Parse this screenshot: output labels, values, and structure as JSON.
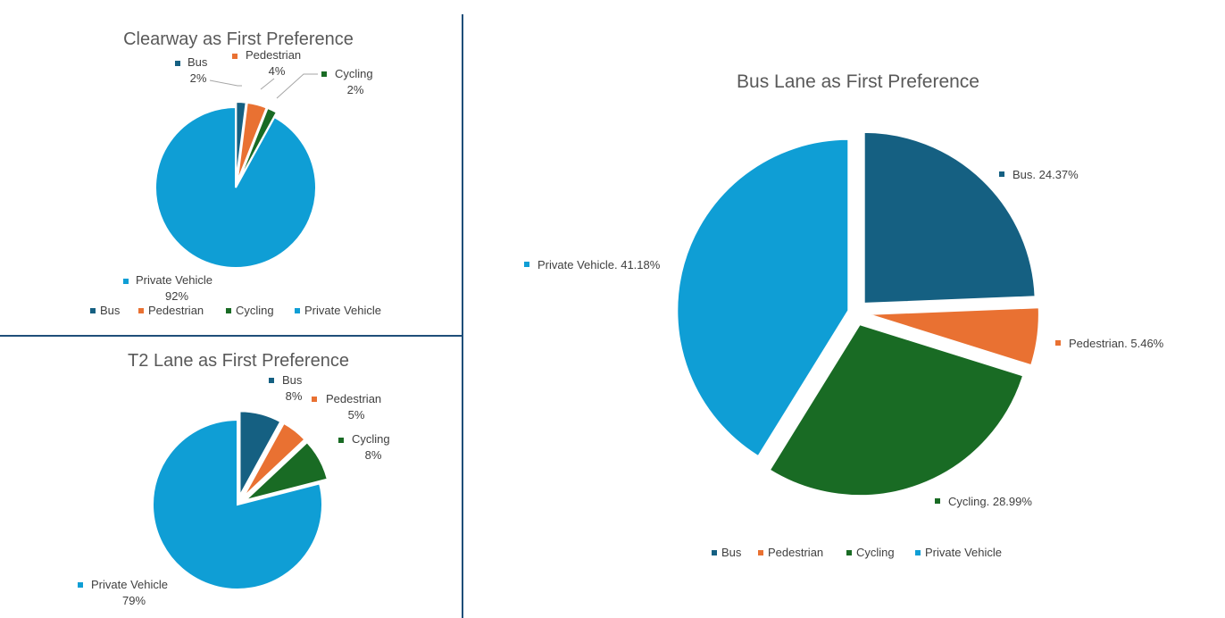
{
  "chart_data": [
    {
      "type": "pie",
      "title": "Clearway as First Preference",
      "categories": [
        "Bus",
        "Pedestrian",
        "Cycling",
        "Private Vehicle"
      ],
      "values": [
        2,
        4,
        2,
        92
      ],
      "value_labels": [
        "2%",
        "4%",
        "2%",
        "92%"
      ],
      "colors": [
        "#156082",
        "#e97132",
        "#196b24",
        "#0f9ed5"
      ],
      "legend": [
        "Bus",
        "Pedestrian",
        "Cycling",
        "Private Vehicle"
      ],
      "legend_position": "bottom"
    },
    {
      "type": "pie",
      "title": "T2 Lane as First Preference",
      "categories": [
        "Bus",
        "Pedestrian",
        "Cycling",
        "Private Vehicle"
      ],
      "values": [
        8,
        5,
        8,
        79
      ],
      "value_labels": [
        "8%",
        "5%",
        "8%",
        "79%"
      ],
      "colors": [
        "#156082",
        "#e97132",
        "#196b24",
        "#0f9ed5"
      ]
    },
    {
      "type": "pie",
      "title": "Bus Lane as First Preference",
      "categories": [
        "Bus",
        "Pedestrian",
        "Cycling",
        "Private Vehicle"
      ],
      "values": [
        24.37,
        5.46,
        28.99,
        41.18
      ],
      "value_labels": [
        "Bus. 24.37%",
        "Pedestrian. 5.46%",
        "Cycling. 28.99%",
        "Private Vehicle. 41.18%"
      ],
      "colors": [
        "#156082",
        "#e97132",
        "#196b24",
        "#0f9ed5"
      ],
      "legend": [
        "Bus",
        "Pedestrian",
        "Cycling",
        "Private Vehicle"
      ],
      "legend_position": "bottom"
    }
  ]
}
